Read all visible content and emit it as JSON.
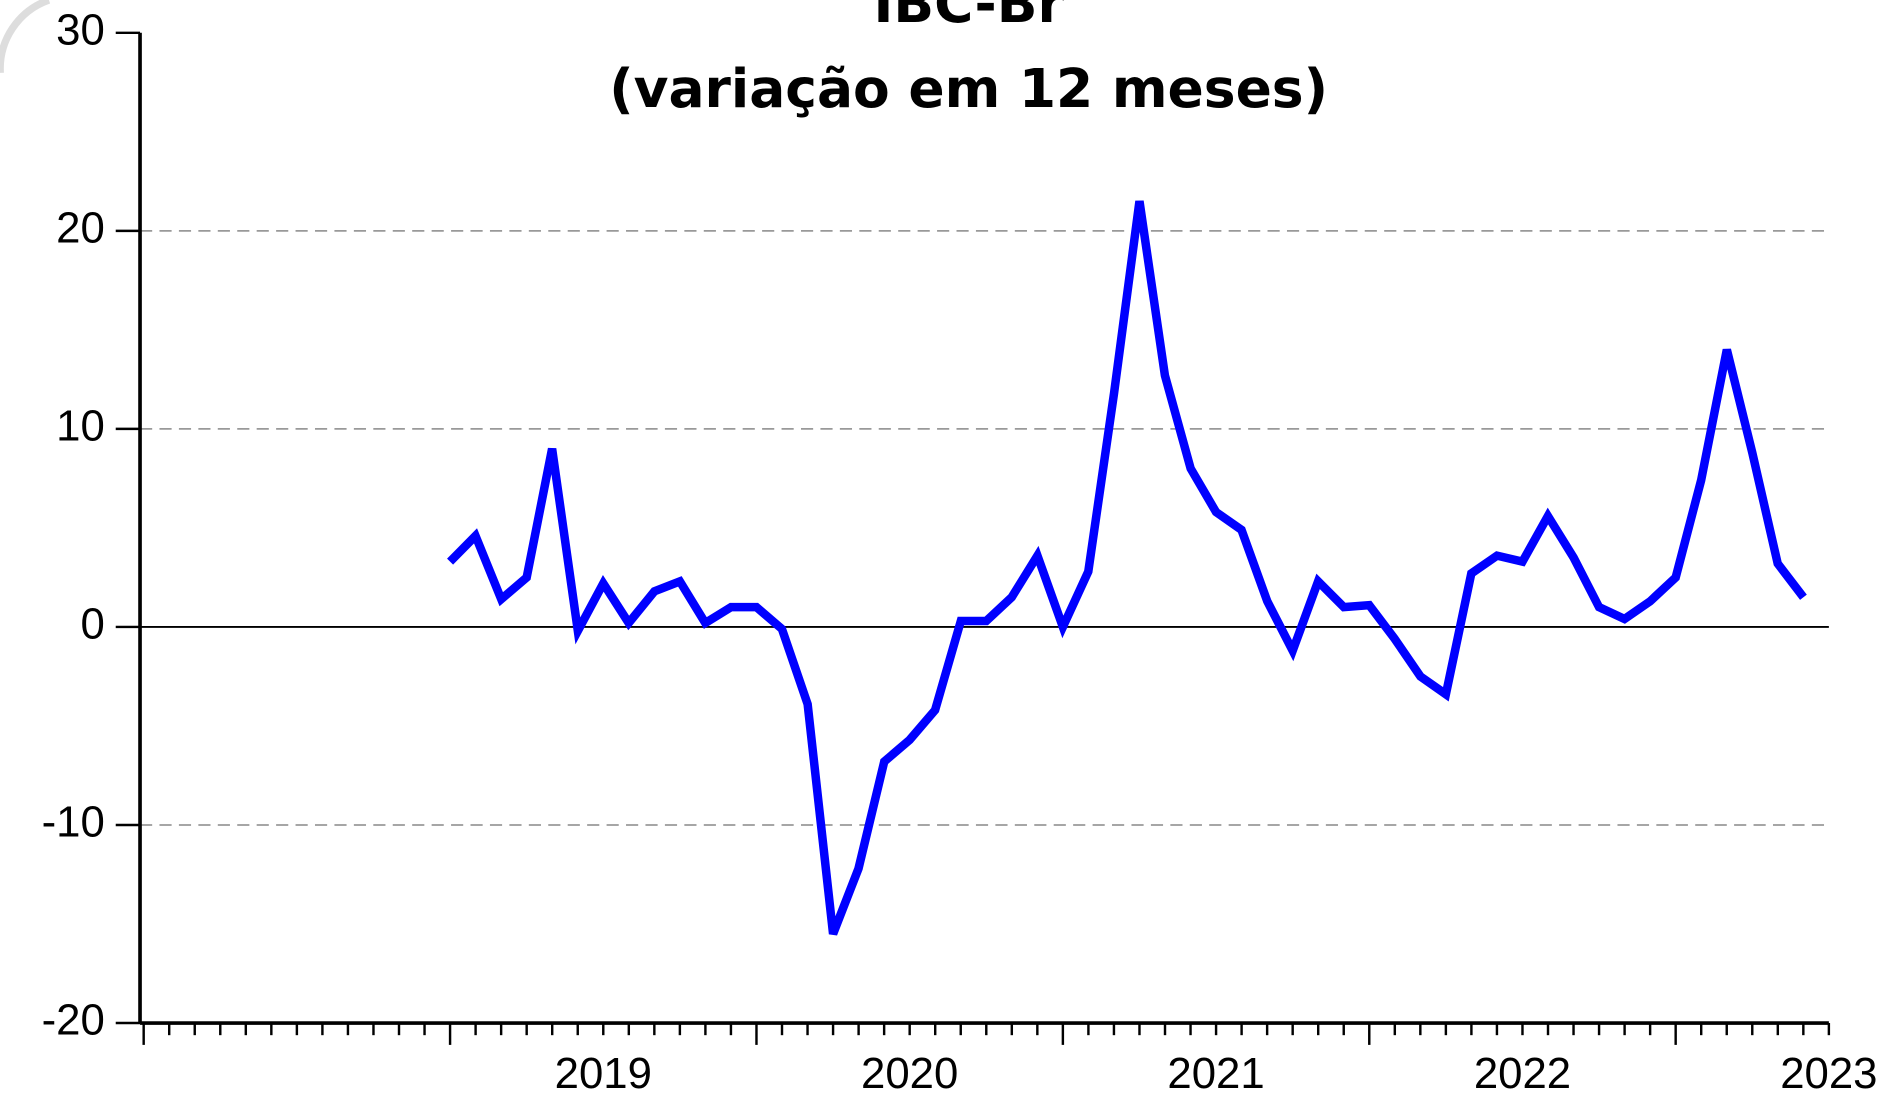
{
  "chart_data": {
    "type": "line",
    "title": "IBC-Br",
    "subtitle": "(variação em 12 meses)",
    "x": [
      2019,
      2019.083,
      2019.167,
      2019.25,
      2019.333,
      2019.417,
      2019.5,
      2019.583,
      2019.667,
      2019.75,
      2019.833,
      2019.917,
      2020,
      2020.083,
      2020.167,
      2020.25,
      2020.333,
      2020.417,
      2020.5,
      2020.583,
      2020.667,
      2020.75,
      2020.833,
      2020.917,
      2021,
      2021.083,
      2021.167,
      2021.25,
      2021.333,
      2021.417,
      2021.5,
      2021.583,
      2021.667,
      2021.75,
      2021.833,
      2021.917,
      2022,
      2022.083,
      2022.167,
      2022.25,
      2022.333,
      2022.417,
      2022.5,
      2022.583,
      2022.667,
      2022.75,
      2022.833,
      2022.917,
      2023,
      2023.083,
      2023.167,
      2023.25,
      2023.333,
      2023.417
    ],
    "series": [
      {
        "name": "IBC-Br",
        "color": "#0000ff",
        "values": [
          3.3,
          4.6,
          1.4,
          2.5,
          9.0,
          -0.2,
          2.2,
          0.2,
          1.8,
          2.3,
          0.2,
          1.0,
          1.0,
          -0.1,
          -3.9,
          -15.5,
          -12.2,
          -6.8,
          -5.7,
          -4.2,
          0.3,
          0.3,
          1.5,
          3.6,
          0.0,
          2.8,
          11.8,
          21.5,
          12.7,
          8.0,
          5.8,
          4.9,
          1.3,
          -1.2,
          2.3,
          1.0,
          1.1,
          -0.6,
          -2.5,
          -3.4,
          2.7,
          3.6,
          3.3,
          5.6,
          3.5,
          1.0,
          0.4,
          1.3,
          2.5,
          7.4,
          14.0,
          8.8,
          3.2,
          1.5
        ]
      }
    ],
    "xlim": [
      2018,
      2023.5
    ],
    "xticks": [
      {
        "value": 2019.5,
        "label": "2019"
      },
      {
        "value": 2020.5,
        "label": "2020"
      },
      {
        "value": 2021.5,
        "label": "2021"
      },
      {
        "value": 2022.5,
        "label": "2022"
      },
      {
        "value": 2023.5,
        "label": "2023"
      }
    ],
    "x_major_ticks": [
      2018,
      2019,
      2020,
      2021,
      2022,
      2023
    ],
    "ylim": [
      -20,
      30
    ],
    "yticks": [
      -20,
      -10,
      0,
      10,
      20,
      30
    ],
    "grid": true
  }
}
